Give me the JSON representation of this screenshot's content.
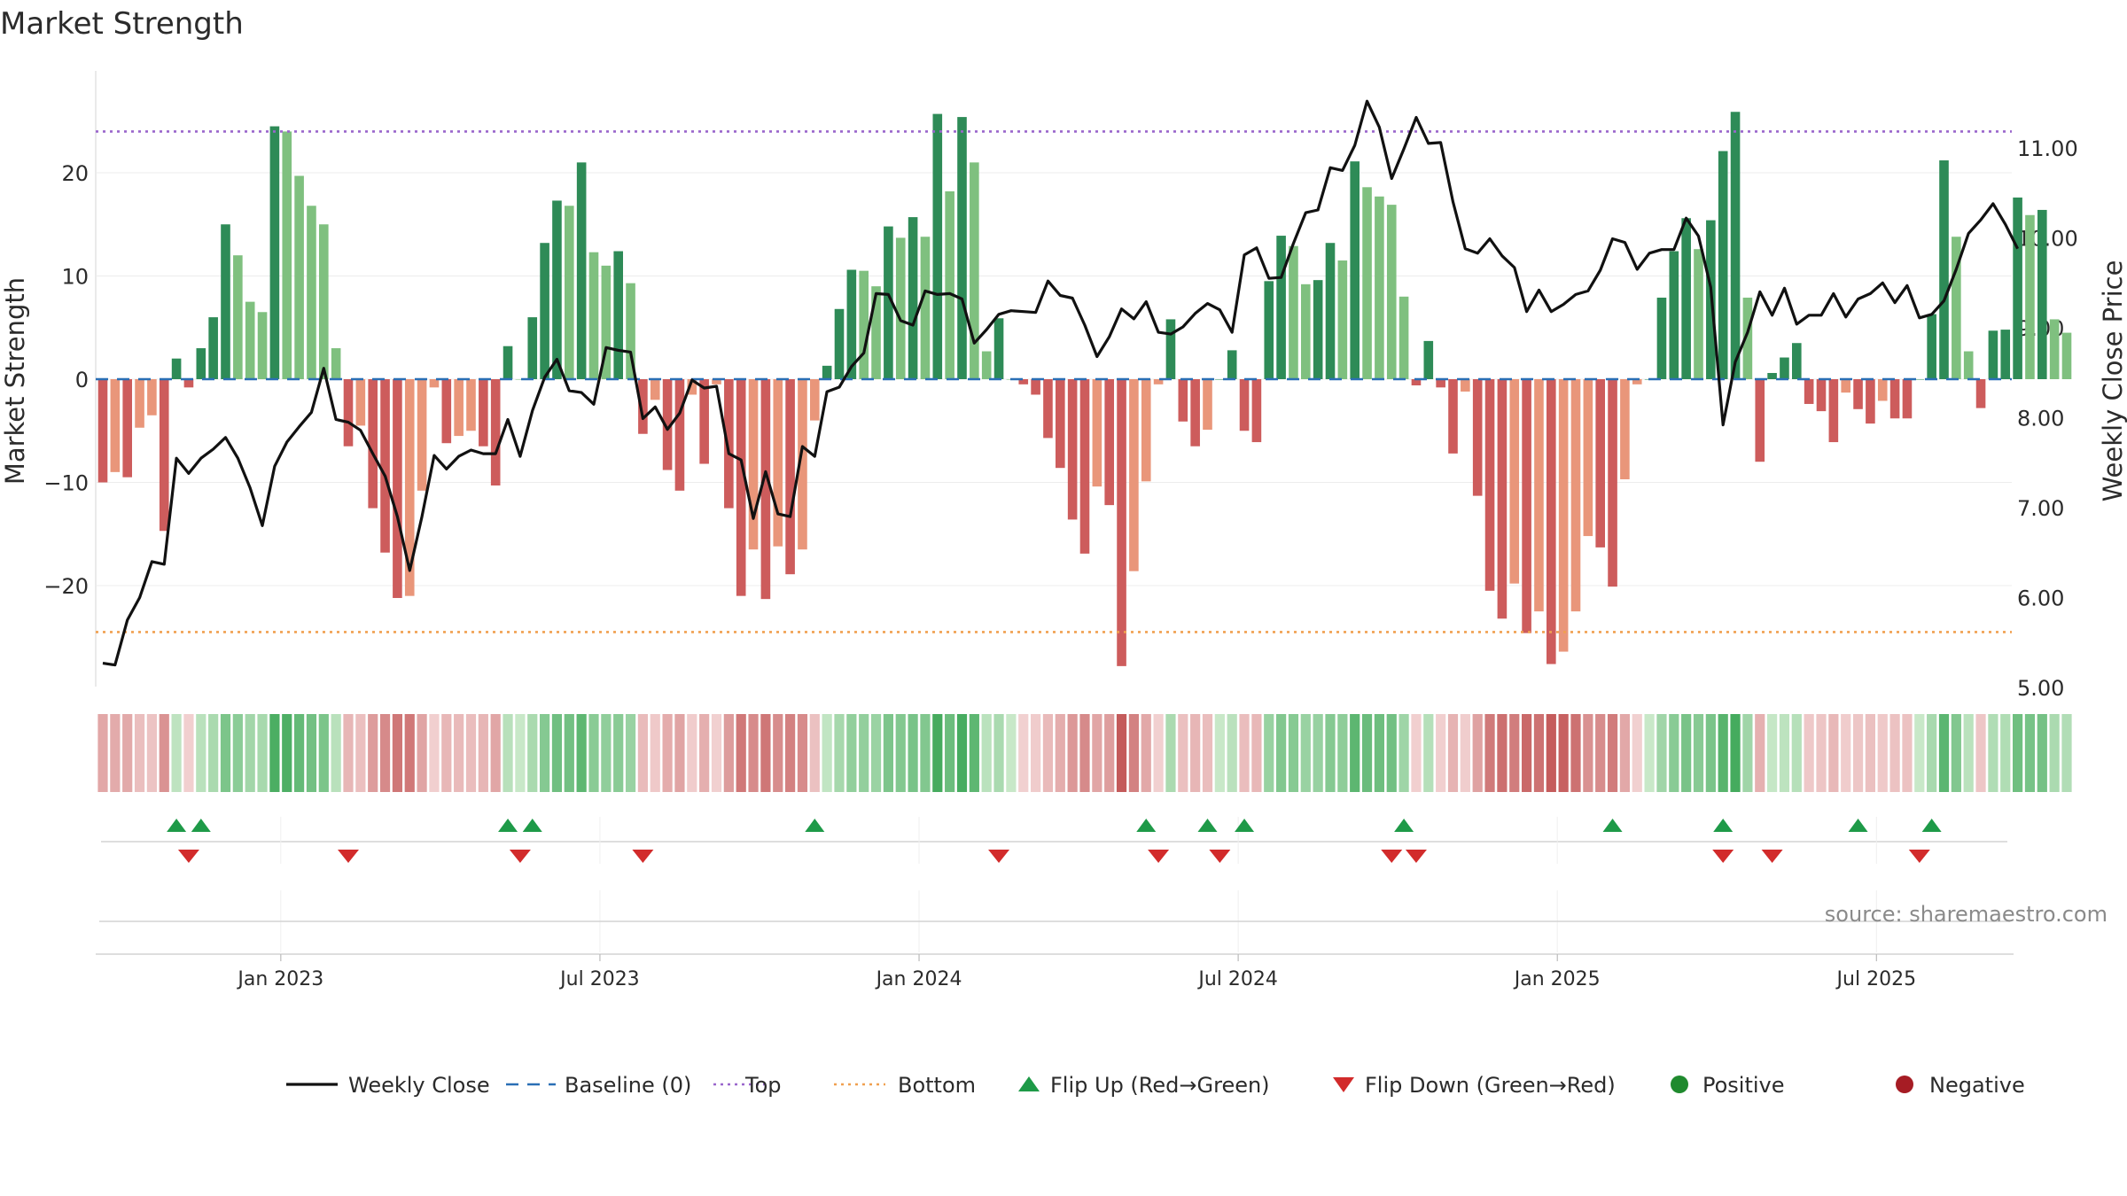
{
  "chart_data": {
    "type": "bar",
    "title": "Market Strength",
    "ylabel_left": "Market Strength",
    "ylabel_right": "Weekly Close Price",
    "source": "source: sharemaestro.com",
    "yticks_left": [
      {
        "value": 20,
        "label": "20"
      },
      {
        "value": 10,
        "label": "10"
      },
      {
        "value": 0,
        "label": "0"
      },
      {
        "value": -10,
        "label": "−10"
      },
      {
        "value": -20,
        "label": "−20"
      }
    ],
    "yticks_right": [
      {
        "value": 11,
        "label": "11.00"
      },
      {
        "value": 10,
        "label": "10.00"
      },
      {
        "value": 9,
        "label": "9.00"
      },
      {
        "value": 8,
        "label": "8.00"
      },
      {
        "value": 7,
        "label": "7.00"
      },
      {
        "value": 6,
        "label": "6.00"
      },
      {
        "value": 5,
        "label": "5.00"
      }
    ],
    "xticks": [
      {
        "week": 14.5,
        "label": "Jan 2023"
      },
      {
        "week": 40.5,
        "label": "Jul 2023"
      },
      {
        "week": 66.5,
        "label": "Jan 2024"
      },
      {
        "week": 92.5,
        "label": "Jul 2024"
      },
      {
        "week": 118.5,
        "label": "Jan 2025"
      },
      {
        "week": 144.5,
        "label": "Jul 2025"
      }
    ],
    "ylim_left": [
      -30,
      30
    ],
    "ylim_right": [
      4.82,
      11.65
    ],
    "top_line": 24,
    "bottom_line": -24.5,
    "baseline": 0,
    "strength": [
      -10,
      -9,
      -9.5,
      -4.7,
      -3.5,
      -14.7,
      2,
      -0.8,
      3,
      6,
      15,
      12,
      7.5,
      6.5,
      24.5,
      24,
      19.7,
      16.8,
      15,
      3,
      -6.5,
      -4.5,
      -12.5,
      -16.8,
      -21.2,
      -21,
      -10.8,
      -0.8,
      -6.2,
      -5.5,
      -5,
      -6.5,
      -10.3,
      3.2,
      0,
      6,
      13.2,
      17.3,
      16.8,
      21,
      12.3,
      11,
      12.4,
      9.3,
      -5.3,
      -2,
      -8.8,
      -10.8,
      -1.5,
      -8.2,
      -0.5,
      -12.5,
      -21,
      -16.5,
      -21.3,
      -16.2,
      -18.9,
      -16.5,
      -4,
      1.3,
      6.8,
      10.6,
      10.5,
      9,
      14.8,
      13.7,
      15.7,
      13.8,
      25.7,
      18.2,
      25.4,
      21,
      2.7,
      5.9,
      0,
      -0.5,
      -1.5,
      -5.7,
      -8.6,
      -13.6,
      -16.9,
      -10.4,
      -12.2,
      -27.8,
      -18.6,
      -9.9,
      -0.5,
      5.8,
      -4.1,
      -6.5,
      -4.9,
      0,
      2.8,
      -5,
      -6.1,
      9.5,
      13.9,
      12.9,
      9.2,
      9.6,
      13.2,
      11.5,
      21.1,
      18.6,
      17.7,
      16.9,
      8,
      -0.6,
      3.7,
      -0.8,
      -7.2,
      -1.2,
      -11.3,
      -20.5,
      -23.2,
      -19.8,
      -24.6,
      -22.5,
      -27.6,
      -26.4,
      -22.5,
      -15.2,
      -16.3,
      -20.1,
      -9.7,
      -0.5,
      0,
      7.9,
      12.4,
      15.6,
      12.6,
      15.4,
      22.1,
      25.9,
      7.9,
      -8,
      0.6,
      2.1,
      3.5,
      -2.4,
      -3.1,
      -6.1,
      -1.3,
      -2.9,
      -4.3,
      -2.1,
      -3.8,
      -3.8,
      0,
      6.3,
      21.2,
      13.8,
      2.7,
      -2.8,
      4.7,
      4.8,
      17.6,
      15.9,
      16.4,
      5.8,
      4.5
    ],
    "close": [
      5.27,
      5.25,
      5.75,
      6.0,
      6.4,
      6.37,
      7.55,
      7.38,
      7.55,
      7.65,
      7.78,
      7.55,
      7.22,
      6.8,
      7.46,
      7.73,
      7.9,
      8.06,
      8.55,
      7.98,
      7.95,
      7.86,
      7.6,
      7.35,
      6.9,
      6.3,
      6.9,
      7.58,
      7.43,
      7.57,
      7.64,
      7.6,
      7.6,
      7.98,
      7.57,
      8.08,
      8.45,
      8.65,
      8.3,
      8.28,
      8.15,
      8.78,
      8.75,
      8.73,
      7.99,
      8.12,
      7.87,
      8.05,
      8.42,
      8.33,
      8.35,
      7.6,
      7.53,
      6.88,
      7.4,
      6.93,
      6.9,
      7.68,
      7.57,
      8.29,
      8.34,
      8.57,
      8.72,
      9.38,
      9.37,
      9.08,
      9.03,
      9.41,
      9.37,
      9.38,
      9.32,
      8.83,
      8.98,
      9.15,
      9.19,
      9.18,
      9.17,
      9.52,
      9.36,
      9.33,
      9.03,
      8.68,
      8.9,
      9.21,
      9.1,
      9.29,
      8.95,
      8.93,
      9.01,
      9.16,
      9.27,
      9.2,
      8.95,
      9.81,
      9.89,
      9.55,
      9.56,
      9.94,
      10.28,
      10.31,
      10.78,
      10.75,
      11.03,
      11.52,
      11.23,
      10.66,
      10.99,
      11.34,
      11.05,
      11.06,
      10.4,
      9.88,
      9.83,
      9.99,
      9.8,
      9.67,
      9.18,
      9.42,
      9.18,
      9.26,
      9.37,
      9.41,
      9.64,
      9.99,
      9.95,
      9.65,
      9.83,
      9.87,
      9.87,
      10.22,
      10.02,
      9.45,
      7.92,
      8.62,
      8.95,
      9.4,
      9.14,
      9.44,
      9.04,
      9.14,
      9.14,
      9.38,
      9.12,
      9.32,
      9.38,
      9.5,
      9.28,
      9.47,
      9.11,
      9.15,
      9.3,
      9.65,
      10.05,
      10.2,
      10.38,
      10.15,
      9.88
    ],
    "flip_up_weeks": [
      6,
      8,
      33,
      35,
      58,
      85,
      90,
      93,
      106,
      123,
      132,
      143,
      149
    ],
    "flip_down_weeks": [
      7,
      20,
      34,
      44,
      73,
      86,
      91,
      105,
      107,
      132,
      136,
      148
    ],
    "legend": [
      {
        "key": "weekly-close",
        "label": "Weekly Close",
        "color": "#111111"
      },
      {
        "key": "baseline",
        "label": "Baseline (0)",
        "color": "#2a6fb5"
      },
      {
        "key": "top",
        "label": "Top",
        "color": "#9a66cc"
      },
      {
        "key": "bottom",
        "label": "Bottom",
        "color": "#f0a050"
      },
      {
        "key": "flip-up",
        "label": "Flip Up (Red→Green)",
        "color": "#1e9a48"
      },
      {
        "key": "flip-down",
        "label": "Flip Down (Green→Red)",
        "color": "#d22b2b"
      },
      {
        "key": "positive",
        "label": "Positive",
        "color": "#1f8a2e"
      },
      {
        "key": "negative",
        "label": "Negative",
        "color": "#a61c24"
      }
    ],
    "colors": {
      "pos_strong": "#2e8b57",
      "pos_light": "#7fc07f",
      "neg_strong": "#cd5c5c",
      "neg_light": "#e9967a",
      "grid": "#ececec",
      "axis": "#cfcfcf"
    }
  }
}
